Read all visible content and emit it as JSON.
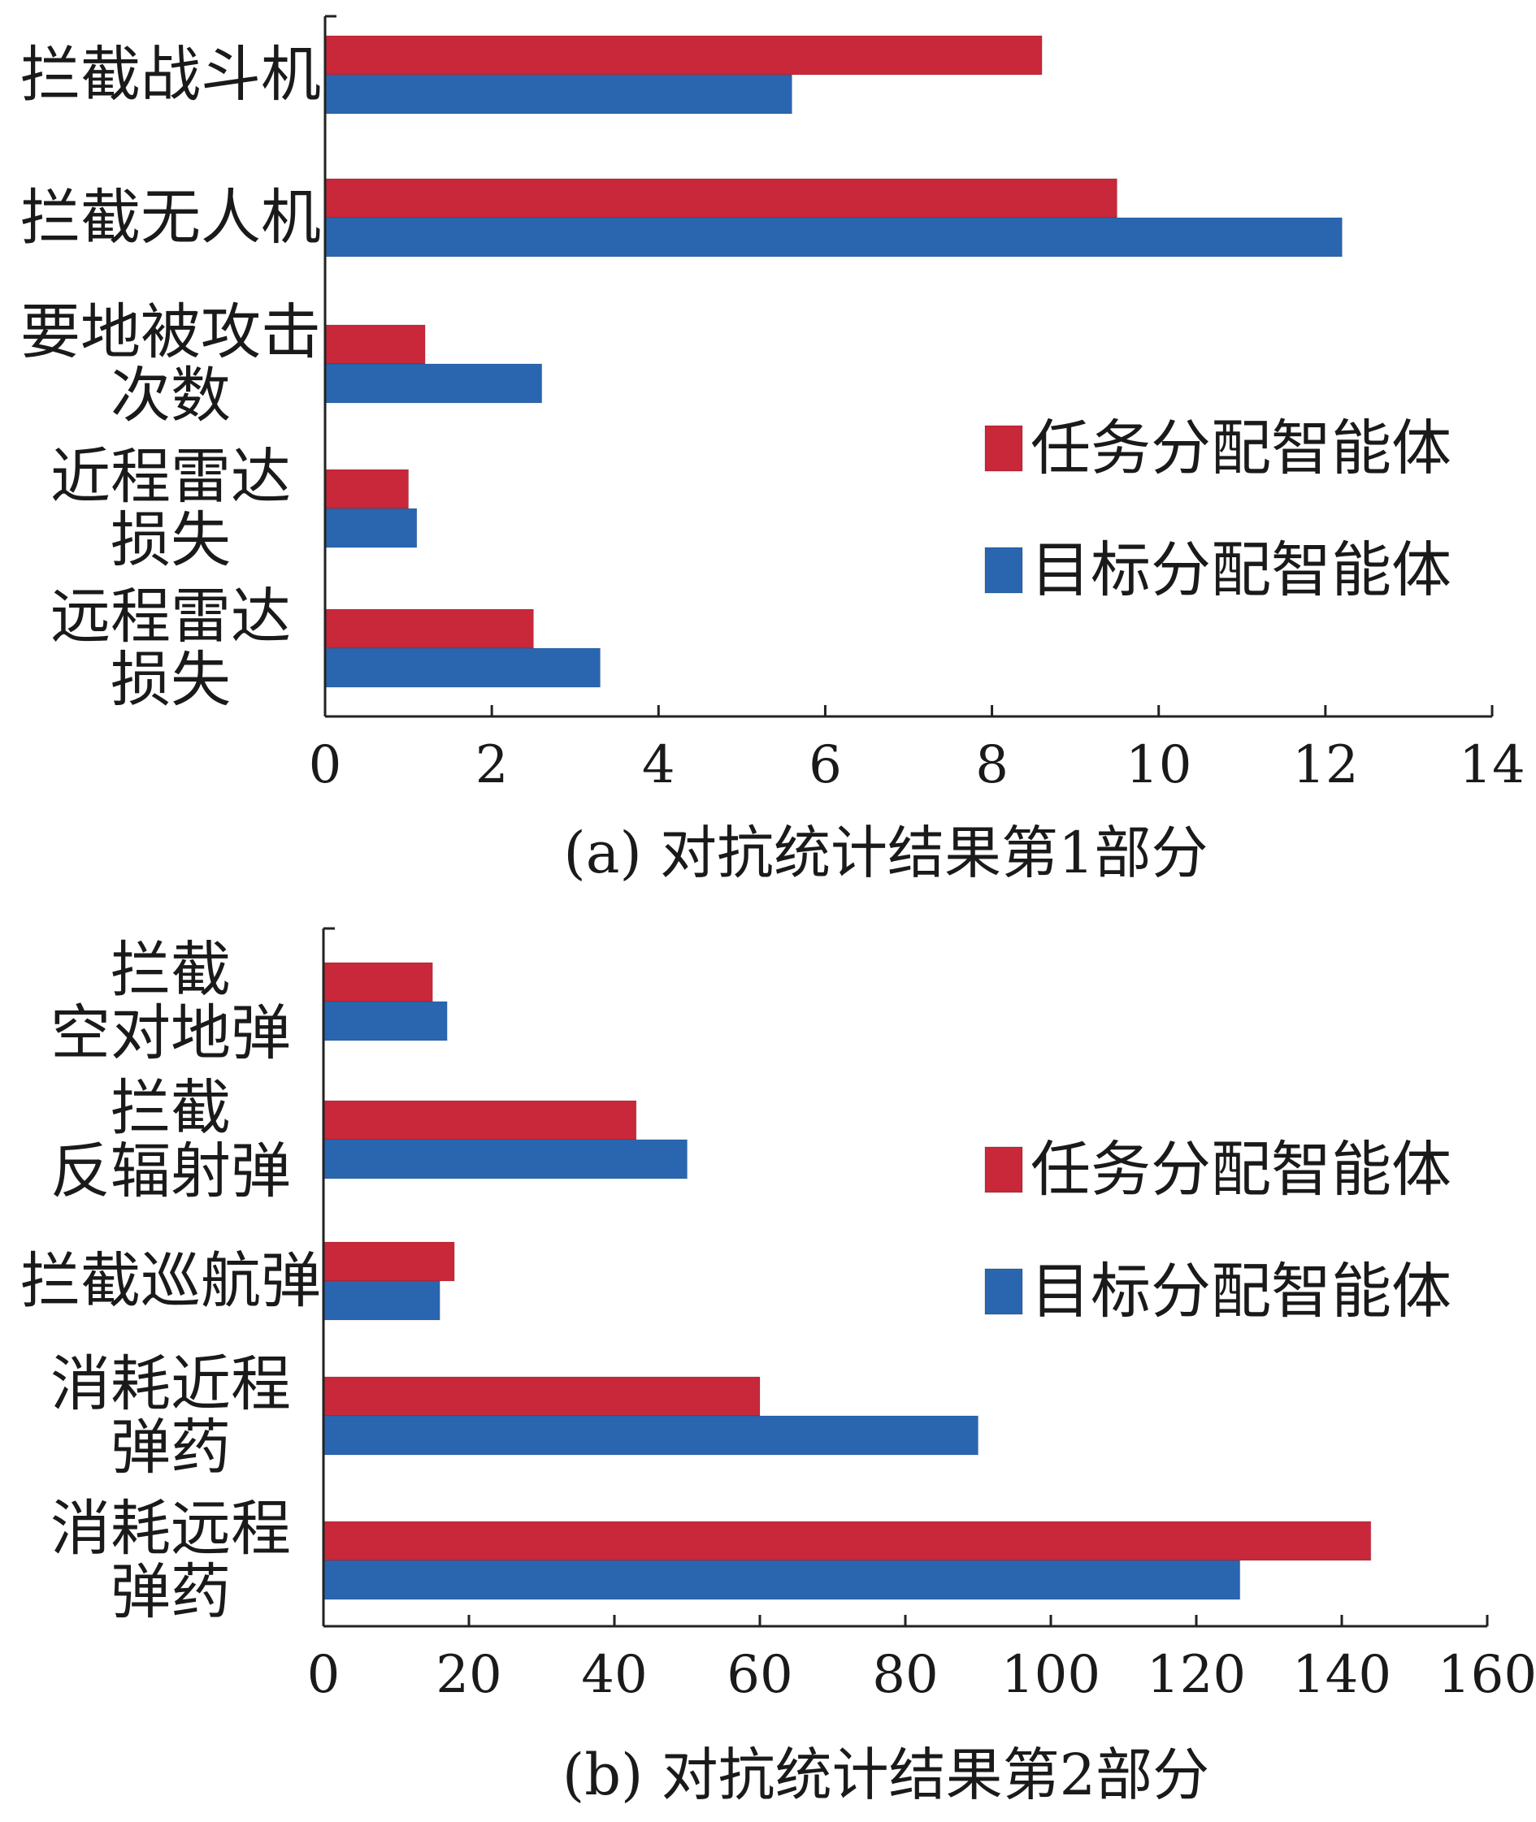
{
  "colors": {
    "task": "#c8283a",
    "target": "#2a66b0",
    "axis": "#222222"
  },
  "chart_data": [
    {
      "type": "bar",
      "orientation": "horizontal",
      "categories": [
        [
          "拦截战斗机"
        ],
        [
          "拦截无人机"
        ],
        [
          "要地被攻击",
          "次数"
        ],
        [
          "近程雷达",
          "损失"
        ],
        [
          "远程雷达",
          "损失"
        ]
      ],
      "series": [
        {
          "name": "任务分配智能体",
          "values": [
            8.6,
            9.5,
            1.2,
            1.0,
            2.5
          ]
        },
        {
          "name": "目标分配智能体",
          "values": [
            5.6,
            12.2,
            2.6,
            1.1,
            3.3
          ]
        }
      ],
      "xlim": [
        0,
        14
      ],
      "xticks": [
        "0",
        "2",
        "4",
        "6",
        "8",
        "10",
        "12",
        "14"
      ],
      "legend_position": "right",
      "caption": "(a) 对抗统计结果第1部分"
    },
    {
      "type": "bar",
      "orientation": "horizontal",
      "categories": [
        [
          "拦截",
          "空对地弹"
        ],
        [
          "拦截",
          "反辐射弹"
        ],
        [
          "拦截巡航弹"
        ],
        [
          "消耗近程",
          "弹药"
        ],
        [
          "消耗远程",
          "弹药"
        ]
      ],
      "series": [
        {
          "name": "任务分配智能体",
          "values": [
            15,
            43,
            18,
            60,
            144
          ]
        },
        {
          "name": "目标分配智能体",
          "values": [
            17,
            50,
            16,
            90,
            126
          ]
        }
      ],
      "xlim": [
        0,
        160
      ],
      "xticks": [
        "0",
        "20",
        "40",
        "60",
        "80",
        "100",
        "120",
        "140",
        "160"
      ],
      "legend_position": "right",
      "caption": "(b) 对抗统计结果第2部分"
    }
  ]
}
